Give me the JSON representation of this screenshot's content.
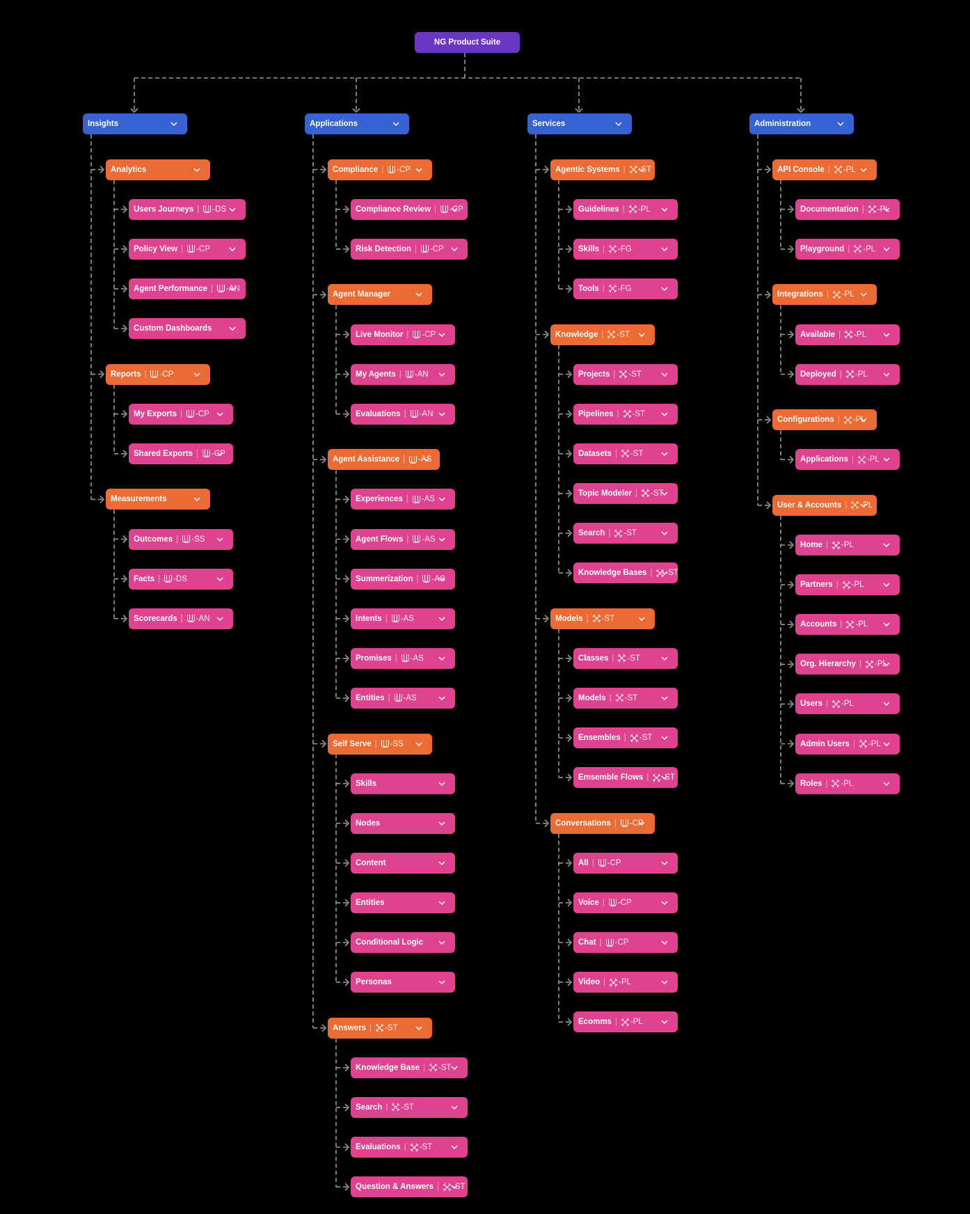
{
  "root": {
    "label": "NG Product Suite"
  },
  "colors": {
    "root": "#6a37c2",
    "level1": "#3563d3",
    "level2": "#ec6a33",
    "level3": "#df428e",
    "connector": "#9a9a9a",
    "background": "#000000"
  },
  "columns": [
    {
      "label": "Insights",
      "children": [
        {
          "label": "Analytics",
          "children": [
            {
              "label": "Users Journeys",
              "tag_icon": "u",
              "tag_code": "DS"
            },
            {
              "label": "Policy View",
              "tag_icon": "u",
              "tag_code": "CP"
            },
            {
              "label": "Agent Performance",
              "tag_icon": "u",
              "tag_code": "AN"
            },
            {
              "label": "Custom Dashboards"
            }
          ]
        },
        {
          "label": "Reports",
          "tag_icon": "u",
          "tag_code": "CP",
          "children": [
            {
              "label": "My Exports",
              "tag_icon": "u",
              "tag_code": "CP"
            },
            {
              "label": "Shared Exports",
              "tag_icon": "u",
              "tag_code": "CP"
            }
          ]
        },
        {
          "label": "Measurements",
          "children": [
            {
              "label": "Outcomes",
              "tag_icon": "u",
              "tag_code": "SS"
            },
            {
              "label": "Facts",
              "tag_icon": "u",
              "tag_code": "DS"
            },
            {
              "label": "Scorecards",
              "tag_icon": "u",
              "tag_code": "AN"
            }
          ]
        }
      ]
    },
    {
      "label": "Applications",
      "children": [
        {
          "label": "Compliance",
          "tag_icon": "u",
          "tag_code": "CP",
          "children": [
            {
              "label": "Compliance Review",
              "tag_icon": "u",
              "tag_code": "CP"
            },
            {
              "label": "Risk Detection",
              "tag_icon": "u",
              "tag_code": "CP"
            }
          ]
        },
        {
          "label": "Agent Manager",
          "children": [
            {
              "label": "Live Monitor",
              "tag_icon": "u",
              "tag_code": "CP"
            },
            {
              "label": "My Agents",
              "tag_icon": "u",
              "tag_code": "AN"
            },
            {
              "label": "Evaluations",
              "tag_icon": "u",
              "tag_code": "AN"
            }
          ]
        },
        {
          "label": "Agent Assistance",
          "tag_icon": "u",
          "tag_code": "AS",
          "children": [
            {
              "label": "Experiences",
              "tag_icon": "u",
              "tag_code": "AS"
            },
            {
              "label": "Agent Flows",
              "tag_icon": "u",
              "tag_code": "AS"
            },
            {
              "label": "Summerization",
              "tag_icon": "u",
              "tag_code": "AS"
            },
            {
              "label": "Intents",
              "tag_icon": "u",
              "tag_code": "AS"
            },
            {
              "label": "Promises",
              "tag_icon": "u",
              "tag_code": "AS"
            },
            {
              "label": "Entities",
              "tag_icon": "u",
              "tag_code": "AS"
            }
          ]
        },
        {
          "label": "Self Serve",
          "tag_icon": "u",
          "tag_code": "SS",
          "children": [
            {
              "label": "Skills"
            },
            {
              "label": "Nodes"
            },
            {
              "label": "Content"
            },
            {
              "label": "Entities"
            },
            {
              "label": "Conditional Logic"
            },
            {
              "label": "Personas"
            }
          ]
        },
        {
          "label": "Answers",
          "tag_icon": "x",
          "tag_code": "ST",
          "children": [
            {
              "label": "Knowledge Base",
              "tag_icon": "x",
              "tag_code": "ST"
            },
            {
              "label": "Search",
              "tag_icon": "x",
              "tag_code": "ST"
            },
            {
              "label": "Evaluations",
              "tag_icon": "x",
              "tag_code": "ST"
            },
            {
              "label": "Question & Answers",
              "tag_icon": "x",
              "tag_code": "ST"
            }
          ]
        }
      ]
    },
    {
      "label": "Services",
      "children": [
        {
          "label": "Agentic Systems",
          "tag_icon": "x",
          "tag_code": "ST",
          "children": [
            {
              "label": "Guidelines",
              "tag_icon": "x",
              "tag_code": "PL"
            },
            {
              "label": "Skills",
              "tag_icon": "x",
              "tag_code": "FG"
            },
            {
              "label": "Tools",
              "tag_icon": "x",
              "tag_code": "FG"
            }
          ]
        },
        {
          "label": "Knowledge",
          "tag_icon": "x",
          "tag_code": "ST",
          "children": [
            {
              "label": "Projects",
              "tag_icon": "x",
              "tag_code": "ST"
            },
            {
              "label": "Pipelines",
              "tag_icon": "x",
              "tag_code": "ST"
            },
            {
              "label": "Datasets",
              "tag_icon": "x",
              "tag_code": "ST"
            },
            {
              "label": "Topic Modeler",
              "tag_icon": "x",
              "tag_code": "ST"
            },
            {
              "label": "Search",
              "tag_icon": "x",
              "tag_code": "ST"
            },
            {
              "label": "Knowledge Bases",
              "tag_icon": "x",
              "tag_code": "ST"
            }
          ]
        },
        {
          "label": "Models",
          "tag_icon": "x",
          "tag_code": "ST",
          "children": [
            {
              "label": "Classes",
              "tag_icon": "x",
              "tag_code": "ST"
            },
            {
              "label": "Models",
              "tag_icon": "x",
              "tag_code": "ST"
            },
            {
              "label": "Ensembles",
              "tag_icon": "x",
              "tag_code": "ST"
            },
            {
              "label": "Emsemble Flows",
              "tag_icon": "x",
              "tag_code": "ST"
            }
          ]
        },
        {
          "label": "Conversations",
          "tag_icon": "u",
          "tag_code": "CP",
          "children": [
            {
              "label": "All",
              "tag_icon": "u",
              "tag_code": "CP"
            },
            {
              "label": "Voice",
              "tag_icon": "u",
              "tag_code": "CP"
            },
            {
              "label": "Chat",
              "tag_icon": "u",
              "tag_code": "CP"
            },
            {
              "label": "Video",
              "tag_icon": "x",
              "tag_code": "PL"
            },
            {
              "label": "Ecomms",
              "tag_icon": "x",
              "tag_code": "PL"
            }
          ]
        }
      ]
    },
    {
      "label": "Administration",
      "children": [
        {
          "label": "API Console",
          "tag_icon": "x",
          "tag_code": "PL",
          "children": [
            {
              "label": "Documentation",
              "tag_icon": "x",
              "tag_code": "PL"
            },
            {
              "label": "Playground",
              "tag_icon": "x",
              "tag_code": "PL"
            }
          ]
        },
        {
          "label": "Integrations",
          "tag_icon": "x",
          "tag_code": "PL",
          "children": [
            {
              "label": "Available",
              "tag_icon": "x",
              "tag_code": "PL"
            },
            {
              "label": "Deployed",
              "tag_icon": "x",
              "tag_code": "PL"
            }
          ]
        },
        {
          "label": "Configurations",
          "tag_icon": "x",
          "tag_code": "PL",
          "children": [
            {
              "label": "Applications",
              "tag_icon": "x",
              "tag_code": "PL"
            }
          ]
        },
        {
          "label": "User & Accounts",
          "tag_icon": "x",
          "tag_code": "PL",
          "children": [
            {
              "label": "Home",
              "tag_icon": "x",
              "tag_code": "PL"
            },
            {
              "label": "Partners",
              "tag_icon": "x",
              "tag_code": "PL"
            },
            {
              "label": "Accounts",
              "tag_icon": "x",
              "tag_code": "PL"
            },
            {
              "label": "Org. Hierarchy",
              "tag_icon": "x",
              "tag_code": "PL"
            },
            {
              "label": "Users",
              "tag_icon": "x",
              "tag_code": "PL"
            },
            {
              "label": "Admin Users",
              "tag_icon": "x",
              "tag_code": "PL"
            },
            {
              "label": "Roles",
              "tag_icon": "x",
              "tag_code": "PL"
            }
          ]
        }
      ]
    }
  ]
}
